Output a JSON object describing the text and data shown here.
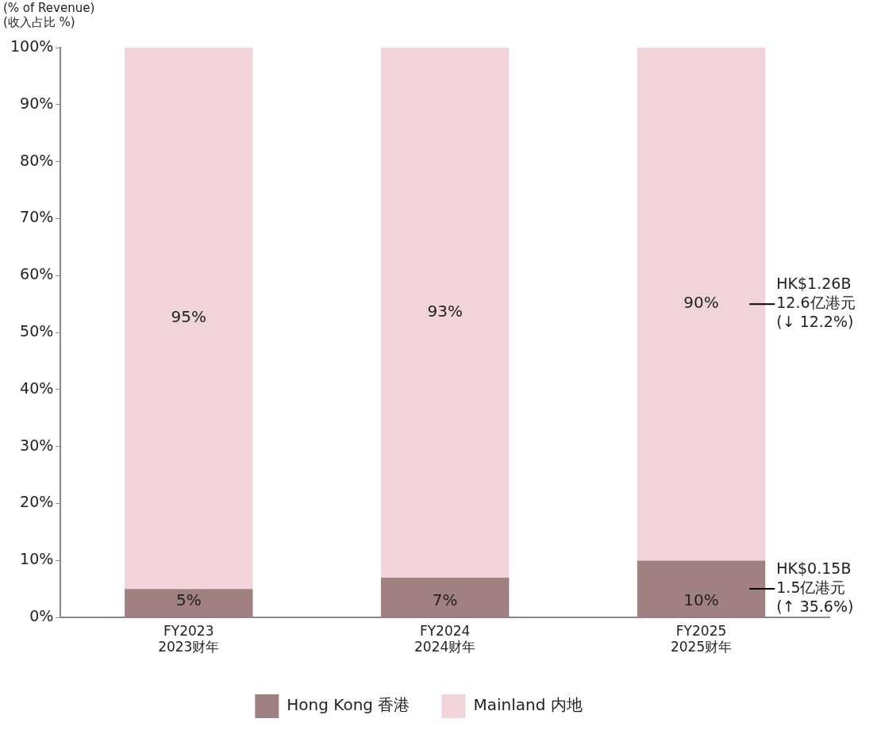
{
  "chart_data": {
    "type": "bar",
    "stacked": true,
    "ylabel": "(% of Revenue)\n(收入占比 %)",
    "categories": [
      "FY2023\n2023财年",
      "FY2024\n2024财年",
      "FY2025\n2025财年"
    ],
    "series": [
      {
        "name": "Hong Kong 香港",
        "color": "#a08080",
        "values": [
          5,
          7,
          10
        ],
        "value_labels": [
          "5%",
          "7%",
          "10%"
        ]
      },
      {
        "name": "Mainland 内地",
        "color": "#f0d4d9",
        "values": [
          95,
          93,
          90
        ],
        "value_labels": [
          "95%",
          "93%",
          "90%"
        ]
      }
    ],
    "ylim": [
      0,
      100
    ],
    "yticks": [
      {
        "value": 0,
        "label": "0%"
      },
      {
        "value": 10,
        "label": "10%"
      },
      {
        "value": 20,
        "label": "20%"
      },
      {
        "value": 30,
        "label": "30%"
      },
      {
        "value": 40,
        "label": "40%"
      },
      {
        "value": 50,
        "label": "50%"
      },
      {
        "value": 60,
        "label": "60%"
      },
      {
        "value": 70,
        "label": "70%"
      },
      {
        "value": 80,
        "label": "80%"
      },
      {
        "value": 90,
        "label": "90%"
      },
      {
        "value": 100,
        "label": "100%"
      }
    ],
    "annotations": [
      "HK$1.26B\n12.6亿港元\n(↓ 12.2%)",
      "HK$0.15B\n1.5亿港元\n(↑ 35.6%)"
    ],
    "grid": false,
    "legend": "bottom"
  }
}
